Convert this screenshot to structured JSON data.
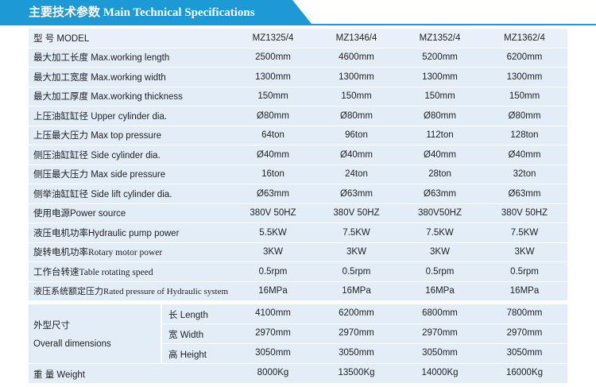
{
  "header": {
    "title": "主要技术参数 Main Technical Specifications",
    "accent_color": "#1d9ad6",
    "row_color": "#e3edf8"
  },
  "models": [
    "MZ1325/4",
    "MZ1346/4",
    "MZ1352/4",
    "MZ1362/4"
  ],
  "model_label": "型  号 MODEL",
  "rows": [
    {
      "label": "最大加工长度 Max.working length",
      "values": [
        "2500mm",
        "4600mm",
        "5200mm",
        "6200mm"
      ]
    },
    {
      "label": "最大加工宽度 Max.working width",
      "values": [
        "1300mm",
        "1300mm",
        "1300mm",
        "1300mm"
      ]
    },
    {
      "label": "最大加工厚度 Max.working thickness",
      "values": [
        "150mm",
        "150mm",
        "150mm",
        "150mm"
      ]
    },
    {
      "label": "上压油缸缸径 Upper cylinder dia.",
      "values": [
        "Ø80mm",
        "Ø80mm",
        "Ø80mm",
        "Ø80mm"
      ]
    },
    {
      "label": "上压最大压力 Max top pressure",
      "values": [
        "64ton",
        "96ton",
        "112ton",
        "128ton"
      ]
    },
    {
      "label": "侧压油缸缸径 Side cylinder dia.",
      "values": [
        "Ø40mm",
        "Ø40mm",
        "Ø40mm",
        "Ø40mm"
      ]
    },
    {
      "label": "侧压最大压力 Max side pressure",
      "values": [
        "16ton",
        "24ton",
        "28ton",
        "32ton"
      ]
    },
    {
      "label": "侧举油缸缸径 Side lift cylinder dia.",
      "values": [
        "Ø63mm",
        "Ø63mm",
        "Ø63mm",
        "Ø63mm"
      ]
    },
    {
      "label": "使用电源Power source",
      "values": [
        "380V 50HZ",
        "380V 50HZ",
        "380V50HZ",
        "380V 50HZ"
      ]
    },
    {
      "label": "液压电机功率Hydraulic pump power",
      "values": [
        "5.5KW",
        "7.5KW",
        "7.5KW",
        "7.5KW"
      ]
    },
    {
      "label": "旋转电机功率Rotary motor power",
      "values": [
        "3KW",
        "3KW",
        "3KW",
        "3KW"
      ]
    },
    {
      "label": "工作台转速Table rotating speed",
      "values": [
        "0.5rpm",
        "0.5rpm",
        "0.5rpm",
        "0.5rpm"
      ]
    },
    {
      "label": "液压系统额定压力Rated pressure of Hydraulic system",
      "values": [
        "16MPa",
        "16MPa",
        "16MPa",
        "16MPa"
      ]
    }
  ],
  "dimensions": {
    "label_cn": "外型尺寸",
    "label_en": "Overall dimensions",
    "rows": [
      {
        "label": "长 Length",
        "values": [
          "4100mm",
          "6200mm",
          "6800mm",
          "7800mm"
        ]
      },
      {
        "label": "宽 Width",
        "values": [
          "2970mm",
          "2970mm",
          "2970mm",
          "2970mm"
        ]
      },
      {
        "label": "高 Height",
        "values": [
          "3050mm",
          "3050mm",
          "3050mm",
          "3050mm"
        ]
      }
    ]
  },
  "weight": {
    "label": "重  量 Weight",
    "values": [
      "8000Kg",
      "13500Kg",
      "14000Kg",
      "16000Kg"
    ]
  }
}
